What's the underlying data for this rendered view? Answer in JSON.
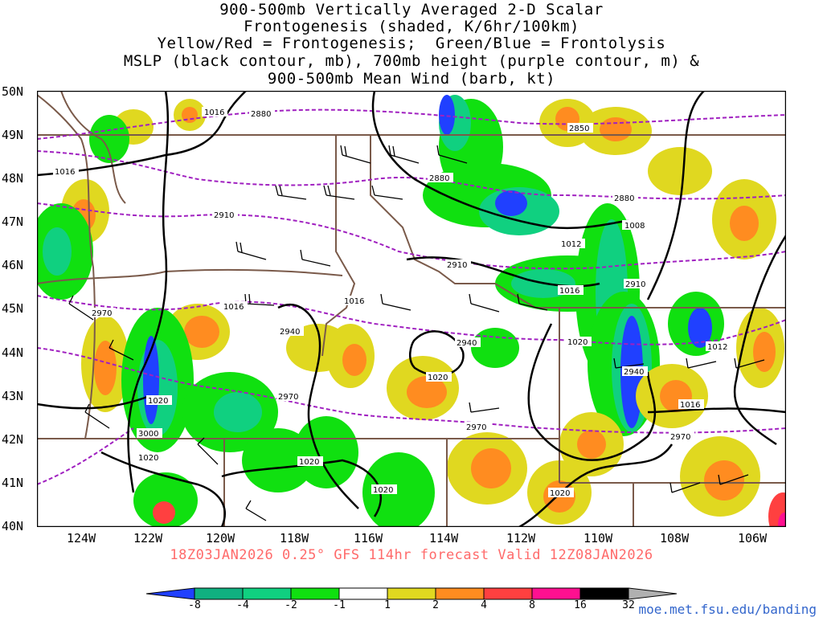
{
  "title_lines": [
    "900-500mb Vertically Averaged 2-D Scalar",
    "Frontogenesis (shaded, K/6hr/100km)",
    "Yellow/Red = Frontogenesis;  Green/Blue = Frontolysis",
    "MSLP (black contour, mb), 700mb height (purple contour, m) &",
    "900-500mb Mean Wind (barb, kt)"
  ],
  "lat_labels": [
    "50N",
    "49N",
    "48N",
    "47N",
    "46N",
    "45N",
    "44N",
    "43N",
    "42N",
    "41N",
    "40N"
  ],
  "lon_labels": [
    "124W",
    "122W",
    "120W",
    "118W",
    "116W",
    "114W",
    "112W",
    "110W",
    "108W",
    "106W"
  ],
  "footer": "18Z03JAN2026 0.25° GFS 114hr forecast Valid 12Z08JAN2026",
  "url": "moe.met.fsu.edu/banding",
  "colorbar": {
    "labels": [
      "-8",
      "-4",
      "-2",
      "-1",
      "1",
      "2",
      "4",
      "8",
      "16",
      "32"
    ],
    "colors": [
      "#2040ff",
      "#10b080",
      "#10d080",
      "#10e010",
      "#ffffff",
      "#e0d820",
      "#ff8c20",
      "#ff4040",
      "#ff1090",
      "#000000"
    ]
  },
  "contour_labels": {
    "mslp": [
      "1016",
      "1016",
      "1008",
      "1012",
      "1016",
      "1016",
      "1020",
      "1020",
      "1012",
      "1020",
      "1016",
      "1020",
      "1020",
      "1020",
      "1020",
      "1020"
    ],
    "height": [
      "2880",
      "2850",
      "2880",
      "2880",
      "2910",
      "2910",
      "2910",
      "2940",
      "2940",
      "2970",
      "2970",
      "2970",
      "2970",
      "3000",
      "2940"
    ]
  },
  "colors": {
    "mslp": "#000000",
    "height": "#a020c0",
    "borders": "#7a5a4a"
  }
}
